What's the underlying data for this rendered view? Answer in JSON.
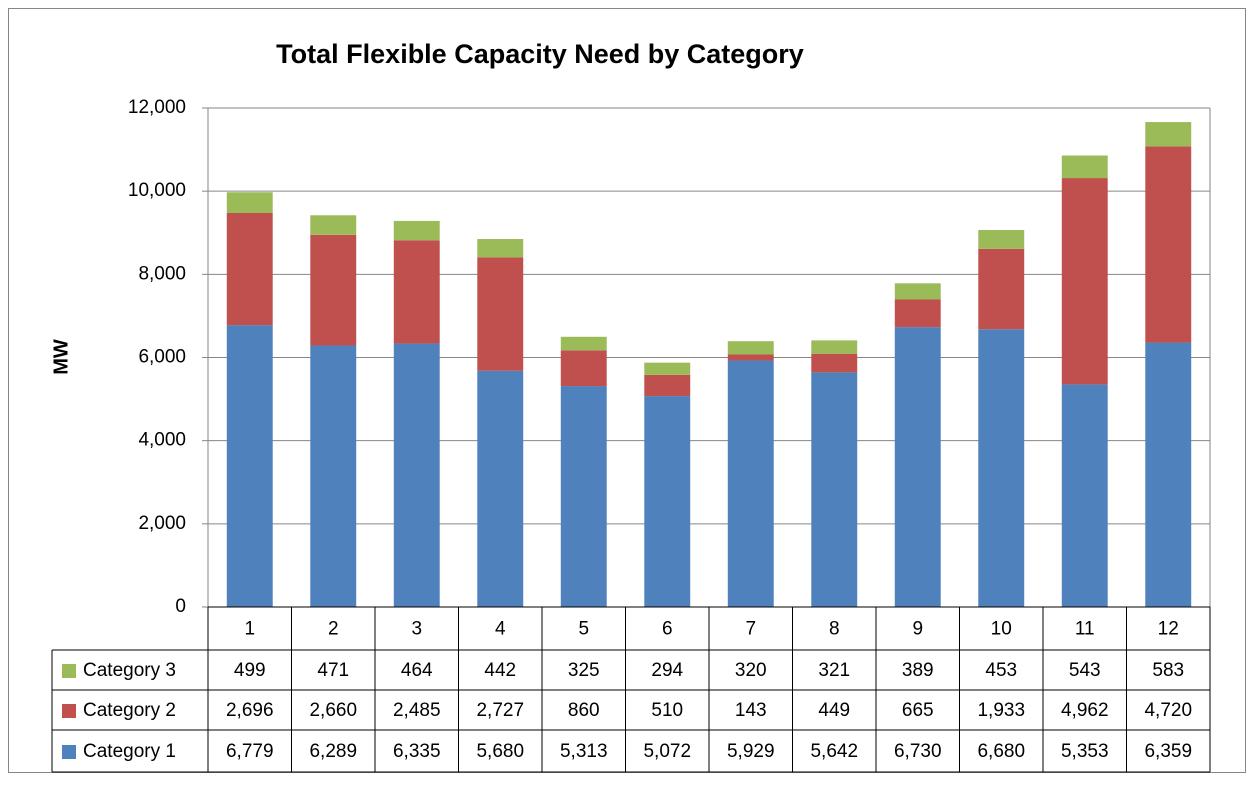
{
  "chart_data": {
    "type": "stacked_bar",
    "title": "Total Flexible Capacity Need by Category",
    "y_label": "MW",
    "categories": [
      "1",
      "2",
      "3",
      "4",
      "5",
      "6",
      "7",
      "8",
      "9",
      "10",
      "11",
      "12"
    ],
    "series": [
      {
        "name": "Category 1",
        "color": "#4f81bd",
        "values": [
          6779,
          6289,
          6335,
          5680,
          5313,
          5072,
          5929,
          5642,
          6730,
          6680,
          5353,
          6359
        ],
        "value_labels": [
          "6,779",
          "6,289",
          "6,335",
          "5,680",
          "5,313",
          "5,072",
          "5,929",
          "5,642",
          "6,730",
          "6,680",
          "5,353",
          "6,359"
        ]
      },
      {
        "name": "Category 2",
        "color": "#c0504d",
        "values": [
          2696,
          2660,
          2485,
          2727,
          860,
          510,
          143,
          449,
          665,
          1933,
          4962,
          4720
        ],
        "value_labels": [
          "2,696",
          "2,660",
          "2,485",
          "2,727",
          "860",
          "510",
          "143",
          "449",
          "665",
          "1,933",
          "4,962",
          "4,720"
        ]
      },
      {
        "name": "Category 3",
        "color": "#9bbb59",
        "values": [
          499,
          471,
          464,
          442,
          325,
          294,
          320,
          321,
          389,
          453,
          543,
          583
        ],
        "value_labels": [
          "499",
          "471",
          "464",
          "442",
          "325",
          "294",
          "320",
          "321",
          "389",
          "453",
          "543",
          "583"
        ]
      }
    ],
    "ylim": [
      0,
      12000
    ],
    "yticks": [
      0,
      {
        "value": 2000,
        "label": "2,000"
      },
      {
        "value": 4000,
        "label": "4,000"
      },
      {
        "value": 6000,
        "label": "6,000"
      },
      {
        "value": 8000,
        "label": "8,000"
      },
      {
        "value": 10000,
        "label": "10,000"
      },
      {
        "value": 12000,
        "label": "12,000"
      }
    ],
    "grid": true
  }
}
